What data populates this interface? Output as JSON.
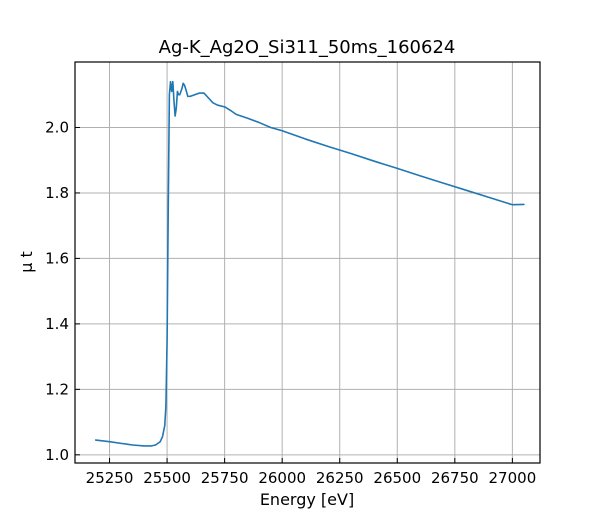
{
  "chart_data": {
    "type": "line",
    "title": "Ag-K_Ag2O_Si311_50ms_160624",
    "xlabel": "Energy [eV]",
    "ylabel": "μ t",
    "xlim": [
      25100,
      27120
    ],
    "ylim": [
      0.975,
      2.2
    ],
    "grid": true,
    "x_ticks": [
      25250,
      25500,
      25750,
      26000,
      26250,
      26500,
      26750,
      27000
    ],
    "y_ticks": [
      1.0,
      1.2,
      1.4,
      1.6,
      1.8,
      2.0
    ],
    "y_tick_labels": [
      "1.0",
      "1.2",
      "1.4",
      "1.6",
      "1.8",
      "2.0"
    ],
    "series": [
      {
        "color": "#1f77b4",
        "x": [
          25190,
          25250,
          25300,
          25350,
          25400,
          25430,
          25450,
          25470,
          25480,
          25490,
          25495,
          25500,
          25505,
          25510,
          25515,
          25520,
          25525,
          25530,
          25535,
          25540,
          25545,
          25550,
          25555,
          25560,
          25565,
          25570,
          25575,
          25580,
          25590,
          25600,
          25620,
          25640,
          25660,
          25680,
          25700,
          25720,
          25750,
          25780,
          25800,
          25850,
          25900,
          25950,
          26000,
          26100,
          26200,
          26300,
          26400,
          26500,
          26600,
          26700,
          26800,
          26900,
          27000,
          27050
        ],
        "y": [
          1.045,
          1.04,
          1.035,
          1.03,
          1.027,
          1.027,
          1.03,
          1.04,
          1.055,
          1.09,
          1.15,
          1.35,
          1.75,
          2.1,
          2.14,
          2.11,
          2.14,
          2.08,
          2.035,
          2.06,
          2.11,
          2.1,
          2.1,
          2.11,
          2.12,
          2.135,
          2.13,
          2.12,
          2.095,
          2.095,
          2.1,
          2.105,
          2.105,
          2.09,
          2.075,
          2.068,
          2.063,
          2.05,
          2.04,
          2.028,
          2.015,
          2.0,
          1.99,
          1.965,
          1.942,
          1.92,
          1.897,
          1.875,
          1.852,
          1.83,
          1.808,
          1.786,
          1.764,
          1.765
        ]
      }
    ]
  }
}
